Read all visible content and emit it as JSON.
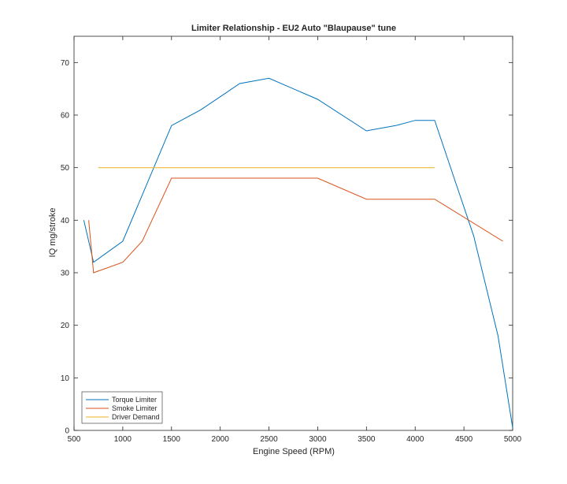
{
  "chart_data": {
    "type": "line",
    "title": "Limiter Relationship - EU2 Auto \"Blaupause\" tune",
    "xlabel": "Engine Speed (RPM)",
    "ylabel": "IQ mg/stroke",
    "xlim": [
      500,
      5000
    ],
    "ylim": [
      0,
      75
    ],
    "xticks": [
      500,
      1000,
      1500,
      2000,
      2500,
      3000,
      3500,
      4000,
      4500,
      5000
    ],
    "yticks": [
      0,
      10,
      20,
      30,
      40,
      50,
      60,
      70
    ],
    "grid": false,
    "legend_position": "bottom-left",
    "series": [
      {
        "name": "Torque Limiter",
        "color": "#0072BD",
        "x": [
          600,
          700,
          1000,
          1500,
          1800,
          2000,
          2200,
          2500,
          3000,
          3500,
          3800,
          4000,
          4200,
          4400,
          4600,
          4850,
          5000
        ],
        "y": [
          40,
          32,
          36,
          58,
          61,
          63.5,
          66,
          67,
          63,
          57,
          58,
          59,
          59,
          48,
          37,
          18,
          0.5
        ]
      },
      {
        "name": "Smoke Limiter",
        "color": "#D95319",
        "x": [
          650,
          700,
          1000,
          1200,
          1500,
          2000,
          2500,
          3000,
          3500,
          4000,
          4200,
          4900
        ],
        "y": [
          40,
          30,
          32,
          36,
          48,
          48,
          48,
          48,
          44,
          44,
          44,
          36
        ]
      },
      {
        "name": "Driver Demand",
        "color": "#EDB120",
        "x": [
          750,
          4200
        ],
        "y": [
          50,
          50
        ]
      }
    ]
  }
}
